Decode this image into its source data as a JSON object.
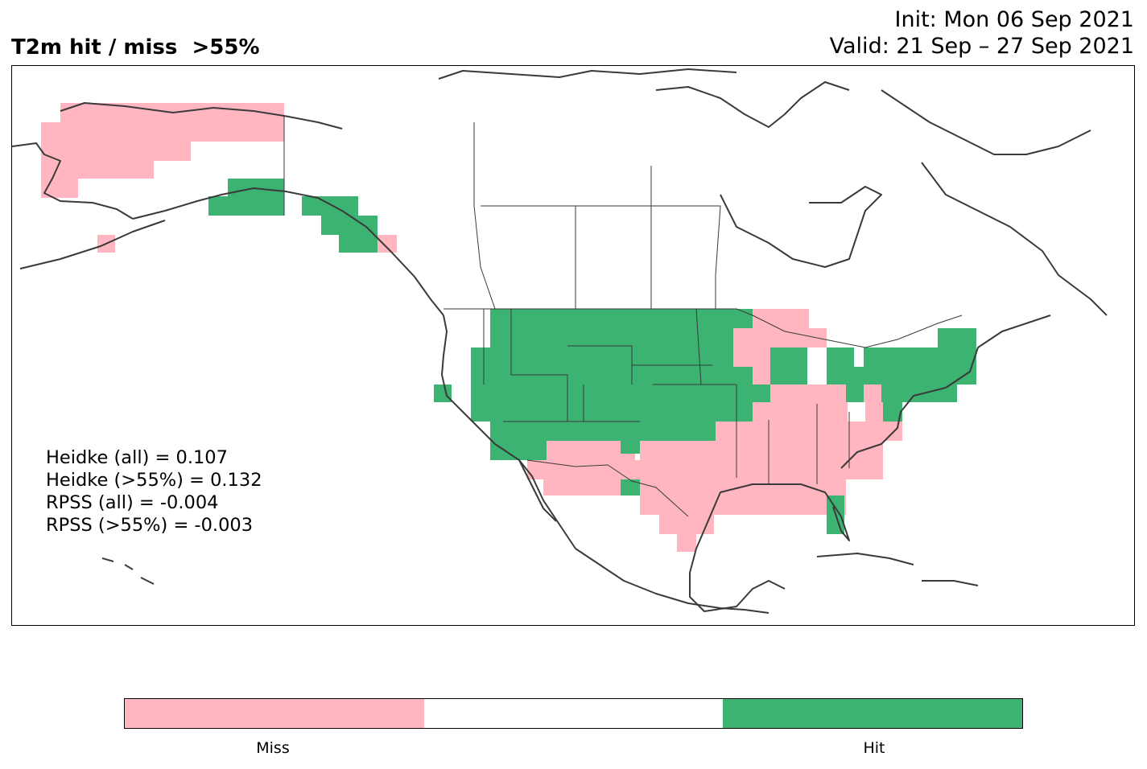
{
  "title": "T2m hit / miss  >55%",
  "init_text": "Init: Mon 06 Sep 2021",
  "valid_text": "Valid: 21 Sep – 27 Sep 2021",
  "stats": {
    "heidke_all": "Heidke (all) = 0.107",
    "heidke_55": "Heidke (>55%) = 0.132",
    "rpss_all": "RPSS (all) = -0.004",
    "rpss_55": "RPSS (>55%) = -0.003"
  },
  "colors": {
    "miss": "#ffb6c1",
    "neutral": "#ffffff",
    "hit": "#3cb371",
    "coast": "#3a3a3a"
  },
  "legend": {
    "miss_label": "Miss",
    "hit_label": "Hit"
  }
}
